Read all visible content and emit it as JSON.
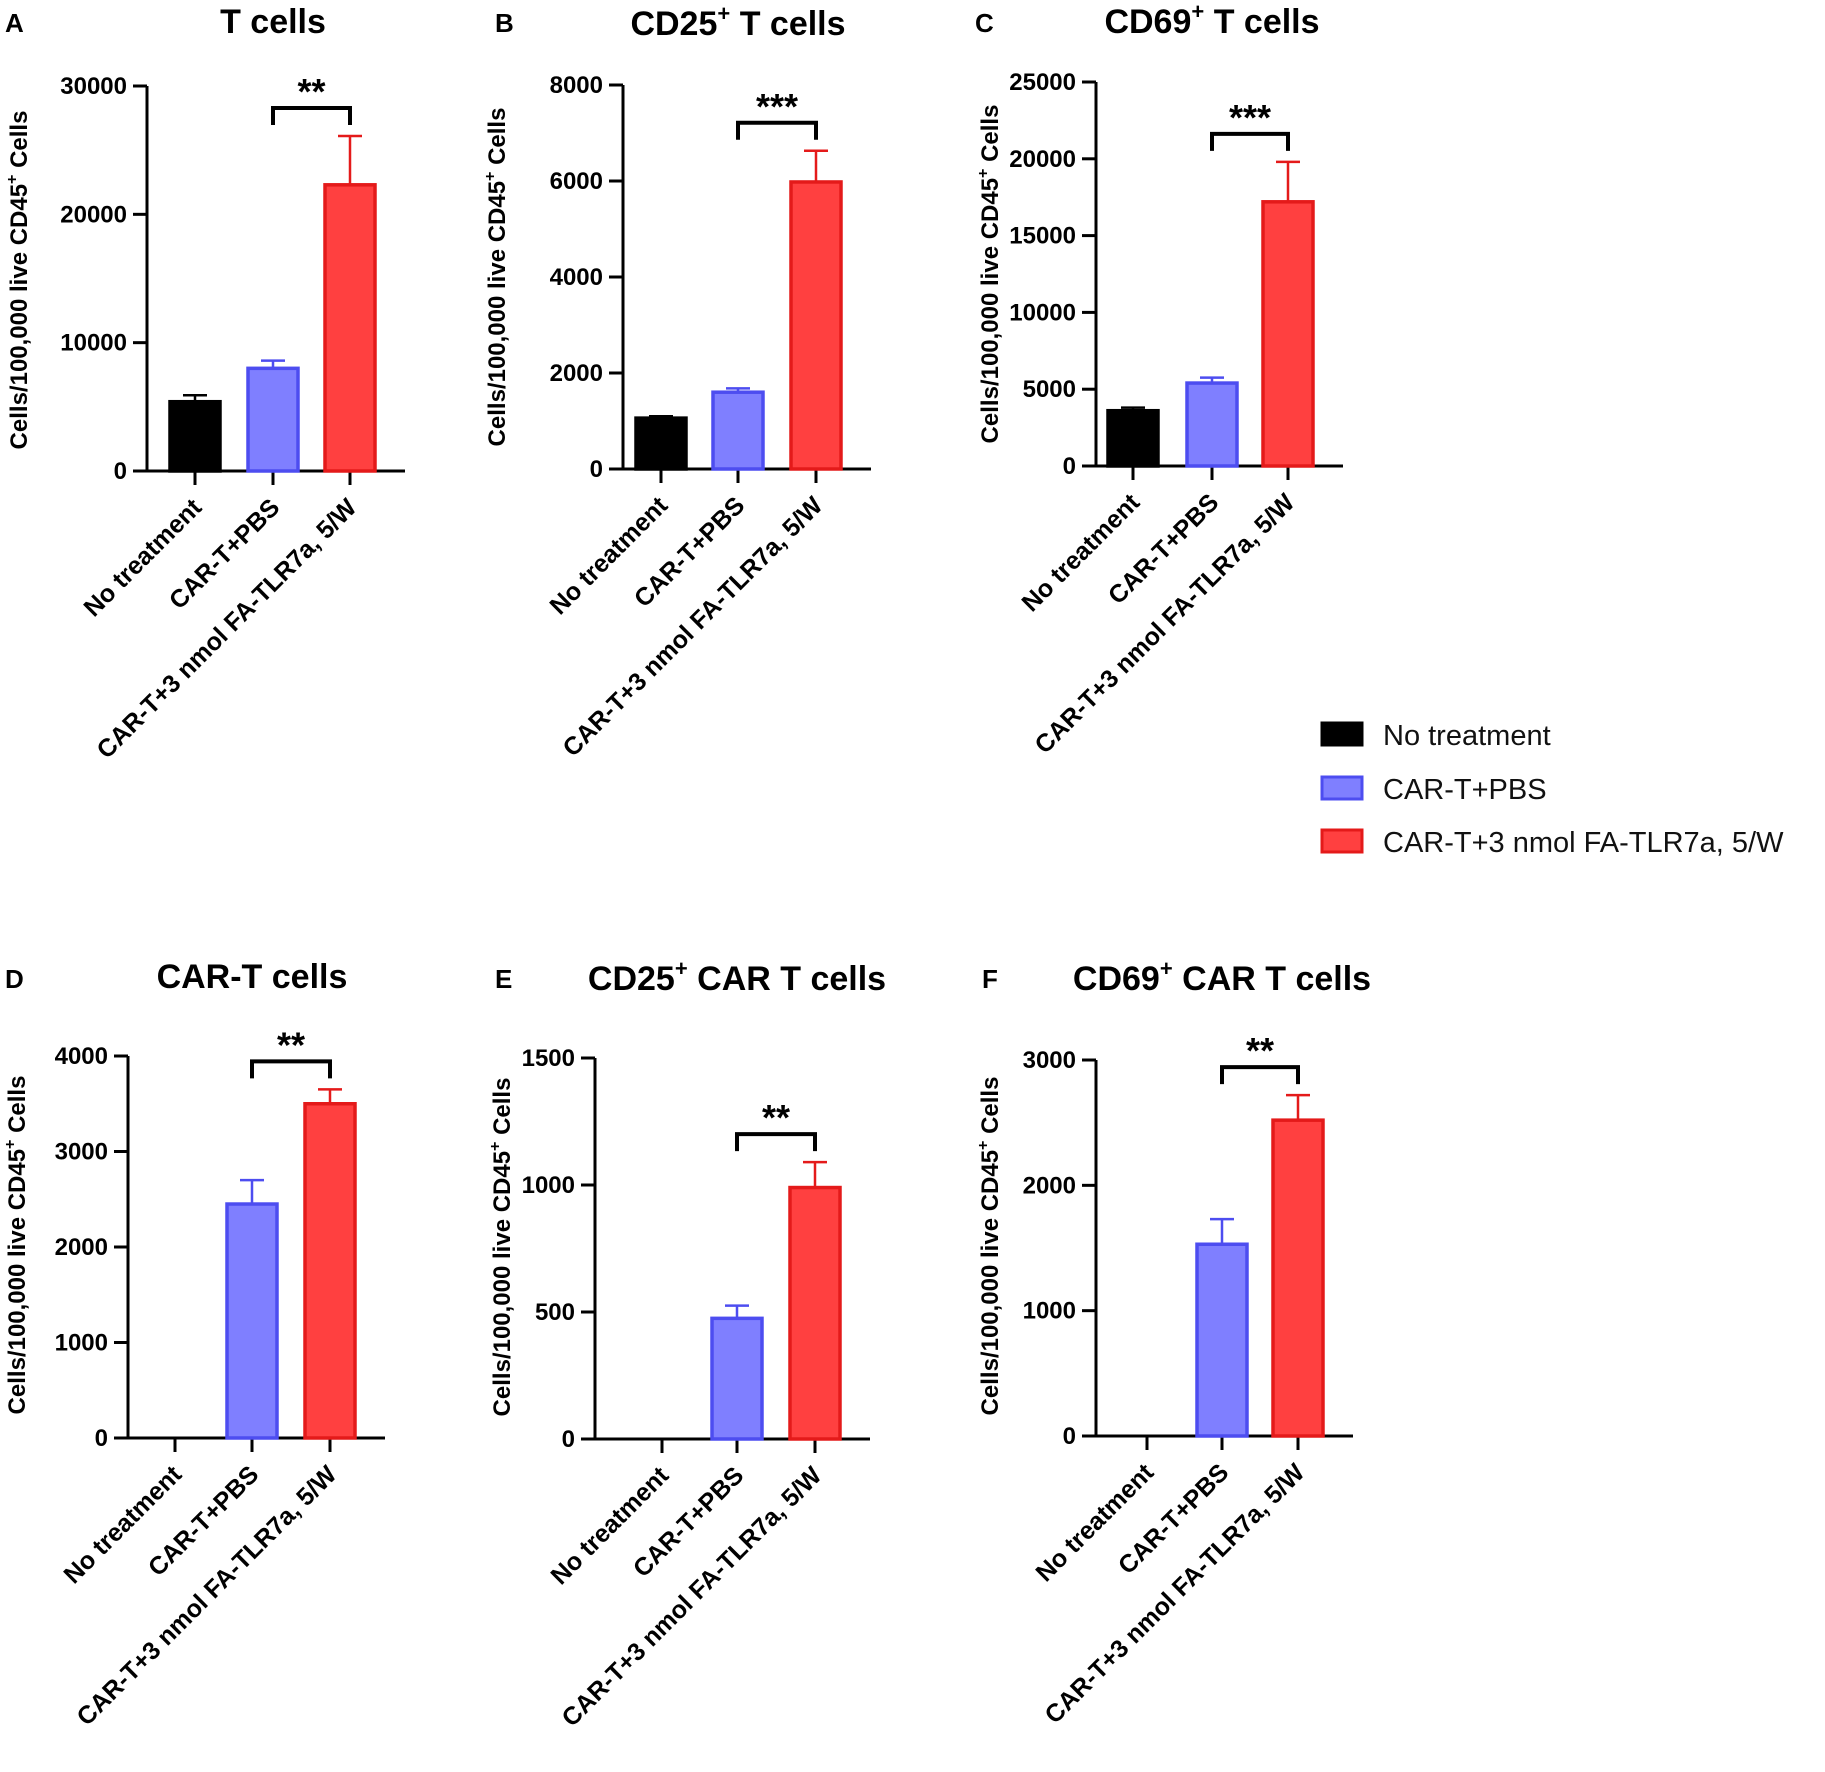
{
  "legend": {
    "items": [
      {
        "label": "No treatment",
        "fill": "#000000",
        "stroke": "#000000"
      },
      {
        "label": "CAR-T+PBS",
        "fill": "#7f7fff",
        "stroke": "#4d4df0"
      },
      {
        "label": "CAR-T+3 nmol FA-TLR7a, 5/W",
        "fill": "#ff4040",
        "stroke": "#e41a1a"
      }
    ]
  },
  "colors": {
    "no_treatment_fill": "#000000",
    "pbs_fill": "#7f7fff",
    "pbs_stroke": "#4d4df0",
    "tlr7a_fill": "#ff4040",
    "tlr7a_stroke": "#e41a1a"
  },
  "chart_data": [
    {
      "panel": "A",
      "type": "bar",
      "title": "T cells",
      "title_sup": "",
      "ylabel_main": "Cells/100,000 live CD45",
      "ylabel_sup": "+",
      "ylabel_end": " Cells",
      "categories": [
        "No treatment",
        "CAR-T+PBS",
        "CAR-T+3 nmol FA-TLR7a, 5/W"
      ],
      "values": [
        5400,
        8000,
        22300
      ],
      "errors": [
        500,
        600,
        3800
      ],
      "ylim": [
        0,
        30000
      ],
      "yticks": [
        "0",
        "10000",
        "20000",
        "30000"
      ],
      "significance": {
        "from": 1,
        "to": 2,
        "label": "**"
      }
    },
    {
      "panel": "B",
      "type": "bar",
      "title": "CD25",
      "title_sup": "+",
      "title_end": " T cells",
      "ylabel_main": "Cells/100,000 live CD45",
      "ylabel_sup": "+",
      "ylabel_end": " Cells",
      "categories": [
        "No treatment",
        "CAR-T+PBS",
        "CAR-T+3 nmol FA-TLR7a, 5/W"
      ],
      "values": [
        1060,
        1600,
        5980
      ],
      "errors": [
        40,
        80,
        650
      ],
      "ylim": [
        0,
        8000
      ],
      "yticks": [
        "0",
        "2000",
        "4000",
        "6000",
        "8000"
      ],
      "significance": {
        "from": 1,
        "to": 2,
        "label": "***"
      }
    },
    {
      "panel": "C",
      "type": "bar",
      "title": "CD69",
      "title_sup": "+",
      "title_end": " T cells",
      "ylabel_main": "Cells/100,000 live CD45",
      "ylabel_sup": "+",
      "ylabel_end": " Cells",
      "categories": [
        "No treatment",
        "CAR-T+PBS",
        "CAR-T+3 nmol FA-TLR7a, 5/W"
      ],
      "values": [
        3600,
        5400,
        17200
      ],
      "errors": [
        200,
        350,
        2600
      ],
      "ylim": [
        0,
        25000
      ],
      "yticks": [
        "0",
        "5000",
        "10000",
        "15000",
        "20000",
        "25000"
      ],
      "significance": {
        "from": 1,
        "to": 2,
        "label": "***"
      }
    },
    {
      "panel": "D",
      "type": "bar",
      "title": "CAR-T cells",
      "title_sup": "",
      "ylabel_main": "Cells/100,000 live CD45",
      "ylabel_sup": "+",
      "ylabel_end": " Cells",
      "categories": [
        "No treatment",
        "CAR-T+PBS",
        "CAR-T+3 nmol FA-TLR7a, 5/W"
      ],
      "values": [
        0,
        2450,
        3500
      ],
      "errors": [
        0,
        250,
        150
      ],
      "ylim": [
        0,
        4000
      ],
      "yticks": [
        "0",
        "1000",
        "2000",
        "3000",
        "4000"
      ],
      "significance": {
        "from": 1,
        "to": 2,
        "label": "**"
      }
    },
    {
      "panel": "E",
      "type": "bar",
      "title": "CD25",
      "title_sup": "+",
      "title_end": " CAR T cells",
      "ylabel_main": "Cells/100,000 live CD45",
      "ylabel_sup": "+",
      "ylabel_end": " Cells",
      "categories": [
        "No treatment",
        "CAR-T+PBS",
        "CAR-T+3 nmol FA-TLR7a, 5/W"
      ],
      "values": [
        0,
        475,
        990
      ],
      "errors": [
        0,
        50,
        100
      ],
      "ylim": [
        0,
        1500
      ],
      "yticks": [
        "0",
        "500",
        "1000",
        "1500"
      ],
      "significance": {
        "from": 1,
        "to": 2,
        "label": "**"
      }
    },
    {
      "panel": "F",
      "type": "bar",
      "title": "CD69",
      "title_sup": "+",
      "title_end": " CAR T cells",
      "ylabel_main": "Cells/100,000 live CD45",
      "ylabel_sup": "+",
      "ylabel_end": " Cells",
      "categories": [
        "No treatment",
        "CAR-T+PBS",
        "CAR-T+3 nmol FA-TLR7a, 5/W"
      ],
      "values": [
        0,
        1530,
        2520
      ],
      "errors": [
        0,
        200,
        200
      ],
      "ylim": [
        0,
        3000
      ],
      "yticks": [
        "0",
        "1000",
        "2000",
        "3000"
      ],
      "significance": {
        "from": 1,
        "to": 2,
        "label": "**"
      }
    }
  ]
}
